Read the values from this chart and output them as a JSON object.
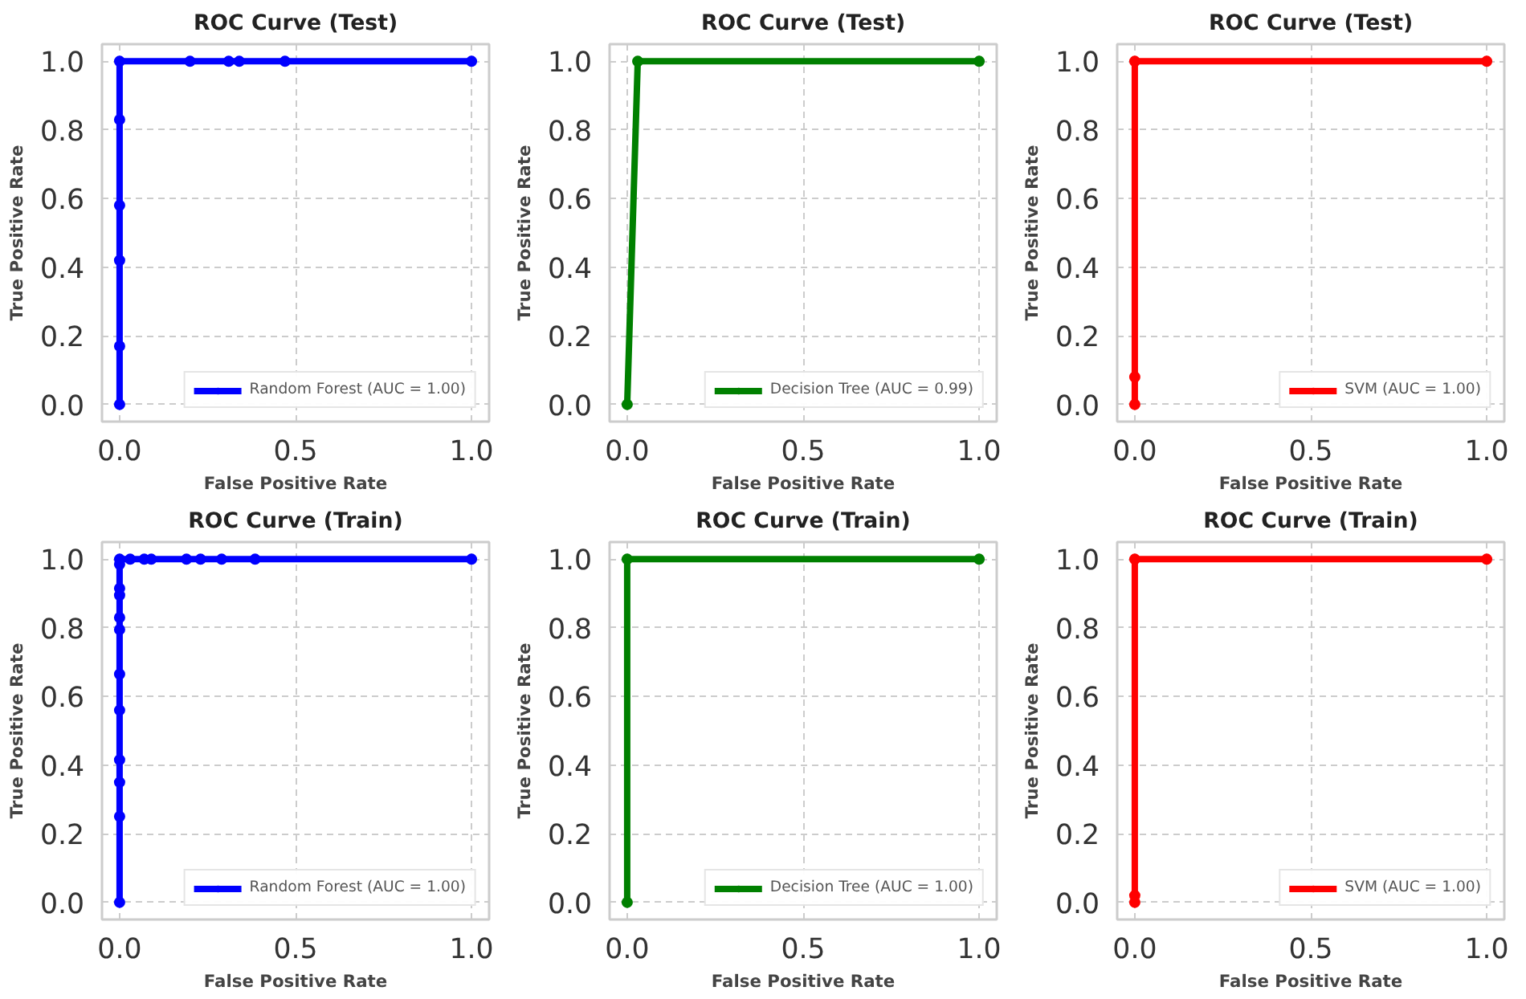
{
  "chart_data": [
    {
      "type": "line",
      "title": "ROC Curve (Test)",
      "xlabel": "False Positive Rate",
      "ylabel": "True Positive Rate",
      "xlim": [
        -0.05,
        1.05
      ],
      "ylim": [
        -0.05,
        1.05
      ],
      "xticks": [
        {
          "value": 0,
          "label": "0.0"
        },
        {
          "value": 0.5,
          "label": "0.5"
        },
        {
          "value": 1,
          "label": "1.0"
        }
      ],
      "yticks": [
        {
          "value": 0,
          "label": "0.0"
        },
        {
          "value": 0.2,
          "label": "0.2"
        },
        {
          "value": 0.4,
          "label": "0.4"
        },
        {
          "value": 0.6,
          "label": "0.6"
        },
        {
          "value": 0.8,
          "label": "0.8"
        },
        {
          "value": 1,
          "label": "1.0"
        }
      ],
      "grid": true,
      "legend": "bottom right",
      "marker": "circle",
      "series": [
        {
          "name": "Random Forest (AUC = 1.00)",
          "color": "#0000ff",
          "x": [
            0,
            0,
            0,
            0,
            0,
            0,
            0.2,
            0.31,
            0.34,
            0.47,
            1.0
          ],
          "values": [
            0,
            0.17,
            0.42,
            0.58,
            0.83,
            1,
            1,
            1,
            1,
            1,
            1
          ]
        }
      ]
    },
    {
      "type": "line",
      "title": "ROC Curve (Test)",
      "xlabel": "False Positive Rate",
      "ylabel": "True Positive Rate",
      "xlim": [
        -0.05,
        1.05
      ],
      "ylim": [
        -0.05,
        1.05
      ],
      "xticks": [
        {
          "value": 0,
          "label": "0.0"
        },
        {
          "value": 0.5,
          "label": "0.5"
        },
        {
          "value": 1,
          "label": "1.0"
        }
      ],
      "yticks": [
        {
          "value": 0,
          "label": "0.0"
        },
        {
          "value": 0.2,
          "label": "0.2"
        },
        {
          "value": 0.4,
          "label": "0.4"
        },
        {
          "value": 0.6,
          "label": "0.6"
        },
        {
          "value": 0.8,
          "label": "0.8"
        },
        {
          "value": 1,
          "label": "1.0"
        }
      ],
      "grid": true,
      "legend": "bottom right",
      "marker": "circle",
      "series": [
        {
          "name": "Decision Tree (AUC = 0.99)",
          "color": "#008000",
          "x": [
            0,
            0.03,
            1.0
          ],
          "values": [
            0,
            1,
            1
          ]
        }
      ]
    },
    {
      "type": "line",
      "title": "ROC Curve (Test)",
      "xlabel": "False Positive Rate",
      "ylabel": "True Positive Rate",
      "xlim": [
        -0.05,
        1.05
      ],
      "ylim": [
        -0.05,
        1.05
      ],
      "xticks": [
        {
          "value": 0,
          "label": "0.0"
        },
        {
          "value": 0.5,
          "label": "0.5"
        },
        {
          "value": 1,
          "label": "1.0"
        }
      ],
      "yticks": [
        {
          "value": 0,
          "label": "0.0"
        },
        {
          "value": 0.2,
          "label": "0.2"
        },
        {
          "value": 0.4,
          "label": "0.4"
        },
        {
          "value": 0.6,
          "label": "0.6"
        },
        {
          "value": 0.8,
          "label": "0.8"
        },
        {
          "value": 1,
          "label": "1.0"
        }
      ],
      "grid": true,
      "legend": "bottom right",
      "marker": "circle",
      "series": [
        {
          "name": "SVM (AUC = 1.00)",
          "color": "#ff0000",
          "x": [
            0,
            0,
            0,
            1.0
          ],
          "values": [
            0,
            0.08,
            1,
            1
          ]
        }
      ]
    },
    {
      "type": "line",
      "title": "ROC Curve (Train)",
      "xlabel": "False Positive Rate",
      "ylabel": "True Positive Rate",
      "xlim": [
        -0.05,
        1.05
      ],
      "ylim": [
        -0.05,
        1.05
      ],
      "xticks": [
        {
          "value": 0,
          "label": "0.0"
        },
        {
          "value": 0.5,
          "label": "0.5"
        },
        {
          "value": 1,
          "label": "1.0"
        }
      ],
      "yticks": [
        {
          "value": 0,
          "label": "0.0"
        },
        {
          "value": 0.2,
          "label": "0.2"
        },
        {
          "value": 0.4,
          "label": "0.4"
        },
        {
          "value": 0.6,
          "label": "0.6"
        },
        {
          "value": 0.8,
          "label": "0.8"
        },
        {
          "value": 1,
          "label": "1.0"
        }
      ],
      "grid": true,
      "legend": "bottom right",
      "marker": "circle",
      "series": [
        {
          "name": "Random Forest (AUC = 1.00)",
          "color": "#0000ff",
          "x": [
            0,
            0,
            0,
            0,
            0,
            0,
            0,
            0,
            0,
            0,
            0,
            0,
            0.03,
            0.07,
            0.09,
            0.19,
            0.23,
            0.29,
            0.385,
            1.0
          ],
          "values": [
            0,
            0.25,
            0.35,
            0.415,
            0.56,
            0.665,
            0.795,
            0.83,
            0.895,
            0.915,
            0.985,
            1,
            1,
            1,
            1,
            1,
            1,
            1,
            1,
            1
          ]
        }
      ]
    },
    {
      "type": "line",
      "title": "ROC Curve (Train)",
      "xlabel": "False Positive Rate",
      "ylabel": "True Positive Rate",
      "xlim": [
        -0.05,
        1.05
      ],
      "ylim": [
        -0.05,
        1.05
      ],
      "xticks": [
        {
          "value": 0,
          "label": "0.0"
        },
        {
          "value": 0.5,
          "label": "0.5"
        },
        {
          "value": 1,
          "label": "1.0"
        }
      ],
      "yticks": [
        {
          "value": 0,
          "label": "0.0"
        },
        {
          "value": 0.2,
          "label": "0.2"
        },
        {
          "value": 0.4,
          "label": "0.4"
        },
        {
          "value": 0.6,
          "label": "0.6"
        },
        {
          "value": 0.8,
          "label": "0.8"
        },
        {
          "value": 1,
          "label": "1.0"
        }
      ],
      "grid": true,
      "legend": "bottom right",
      "marker": "circle",
      "series": [
        {
          "name": "Decision Tree (AUC = 1.00)",
          "color": "#008000",
          "x": [
            0,
            0,
            1.0
          ],
          "values": [
            0,
            1,
            1
          ]
        }
      ]
    },
    {
      "type": "line",
      "title": "ROC Curve (Train)",
      "xlabel": "False Positive Rate",
      "ylabel": "True Positive Rate",
      "xlim": [
        -0.05,
        1.05
      ],
      "ylim": [
        -0.05,
        1.05
      ],
      "xticks": [
        {
          "value": 0,
          "label": "0.0"
        },
        {
          "value": 0.5,
          "label": "0.5"
        },
        {
          "value": 1,
          "label": "1.0"
        }
      ],
      "yticks": [
        {
          "value": 0,
          "label": "0.0"
        },
        {
          "value": 0.2,
          "label": "0.2"
        },
        {
          "value": 0.4,
          "label": "0.4"
        },
        {
          "value": 0.6,
          "label": "0.6"
        },
        {
          "value": 0.8,
          "label": "0.8"
        },
        {
          "value": 1,
          "label": "1.0"
        }
      ],
      "grid": true,
      "legend": "bottom right",
      "marker": "circle",
      "series": [
        {
          "name": "SVM (AUC = 1.00)",
          "color": "#ff0000",
          "x": [
            0,
            0,
            0,
            1.0
          ],
          "values": [
            0,
            0.02,
            1,
            1
          ]
        }
      ]
    }
  ]
}
